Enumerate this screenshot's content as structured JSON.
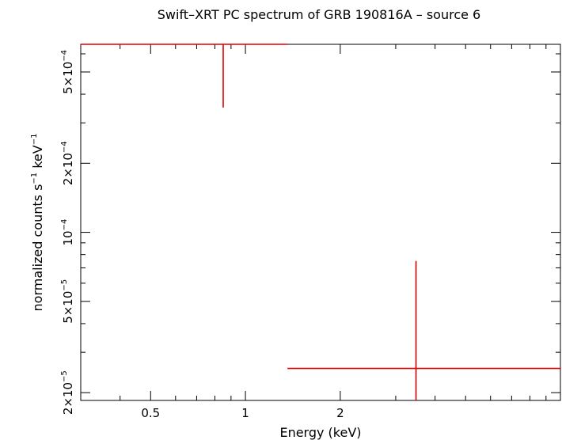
{
  "chart_data": {
    "type": "scatter",
    "title": "Swift–XRT PC spectrum of GRB 190816A – source 6",
    "xlabel": "Energy (keV)",
    "ylabel": {
      "base": "normalized counts s",
      "exp1": "−1",
      "mid": " keV",
      "exp2": "−1"
    },
    "x_scale": "log",
    "y_scale": "log",
    "xlim": [
      0.3,
      10
    ],
    "ylim": [
      1.85e-05,
      0.00066
    ],
    "x_ticks": [
      {
        "value": 0.5,
        "label": "0.5"
      },
      {
        "value": 1,
        "label": "1"
      },
      {
        "value": 2,
        "label": "2"
      }
    ],
    "y_ticks": [
      {
        "value": 2e-05,
        "mantissa": "2×10",
        "exp": "−5"
      },
      {
        "value": 5e-05,
        "mantissa": "5×10",
        "exp": "−5"
      },
      {
        "value": 0.0001,
        "mantissa": "10",
        "exp": "−4"
      },
      {
        "value": 0.0002,
        "mantissa": "2×10",
        "exp": "−4"
      },
      {
        "value": 0.0005,
        "mantissa": "5×10",
        "exp": "−4"
      }
    ],
    "grid": false,
    "color": "#e00000",
    "series": [
      {
        "points": [
          {
            "x": 0.85,
            "x_low": 0.3,
            "x_high": 1.36,
            "y": 0.00066,
            "y_low": 0.00035,
            "y_high": 0.00066
          },
          {
            "x": 3.48,
            "x_low": 1.36,
            "x_high": 10,
            "y": 2.55e-05,
            "y_low": 1.85e-05,
            "y_high": 7.5e-05
          }
        ]
      }
    ]
  }
}
